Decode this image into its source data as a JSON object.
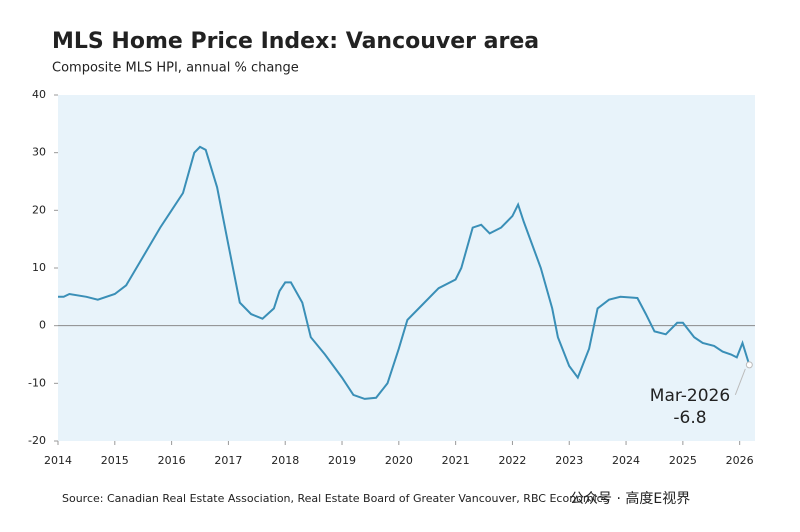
{
  "chart_data": {
    "type": "line",
    "title": "MLS Home Price Index: Vancouver area",
    "subtitle": "Composite MLS HPI, annual % change",
    "source": "Source: Canadian Real Estate Association, Real Estate Board of Greater Vancouver, RBC Economics",
    "watermark": "公众号 · 高度E视界",
    "annotation": "Mar-2026",
    "x": [
      2014.0,
      2014.1,
      2014.2,
      2014.5,
      2014.7,
      2015.0,
      2015.2,
      2015.5,
      2015.8,
      2016.0,
      2016.2,
      2016.4,
      2016.5,
      2016.6,
      2016.8,
      2017.0,
      2017.2,
      2017.4,
      2017.6,
      2017.8,
      2017.9,
      2018.0,
      2018.1,
      2018.3,
      2018.45,
      2018.7,
      2019.0,
      2019.2,
      2019.4,
      2019.6,
      2019.8,
      2020.0,
      2020.15,
      2020.4,
      2020.7,
      2021.0,
      2021.1,
      2021.3,
      2021.45,
      2021.6,
      2021.8,
      2022.0,
      2022.1,
      2022.2,
      2022.5,
      2022.7,
      2022.8,
      2023.0,
      2023.15,
      2023.35,
      2023.5,
      2023.7,
      2023.9,
      2024.2,
      2024.35,
      2024.5,
      2024.7,
      2024.9,
      2025.0,
      2025.2,
      2025.35,
      2025.55,
      2025.7,
      2025.85,
      2025.95,
      2026.05,
      2026.17
    ],
    "series": [
      {
        "name": "Composite MLS HPI",
        "color": "#3a8fb7",
        "values": [
          5,
          5,
          5.5,
          5,
          4.5,
          5.5,
          7,
          12,
          17,
          20,
          23,
          30,
          31,
          30.5,
          24,
          14,
          4,
          2,
          1.2,
          3,
          6,
          7.5,
          7.5,
          4,
          -2,
          -5,
          -9,
          -12,
          -12.7,
          -12.5,
          -10,
          -4,
          1,
          3.5,
          6.5,
          8,
          10,
          17,
          17.5,
          16,
          17,
          19,
          21,
          18,
          10,
          3,
          -2,
          -7,
          -9,
          -4,
          3,
          4.5,
          5,
          4.8,
          2,
          -1,
          -1.5,
          0.5,
          0.5,
          -2,
          -3,
          -3.5,
          -4.5,
          -5,
          -5.5,
          -3,
          -6.8
        ]
      }
    ],
    "xlim": [
      2014,
      2026.27
    ],
    "xticks": [
      2014,
      2015,
      2016,
      2017,
      2018,
      2019,
      2020,
      2021,
      2022,
      2023,
      2024,
      2025,
      2026
    ],
    "ylim": [
      -20,
      40
    ],
    "yticks": [
      -20,
      -10,
      0,
      10,
      20,
      30,
      40
    ],
    "plot_background": "#e8f3fa",
    "zero_line": true
  }
}
